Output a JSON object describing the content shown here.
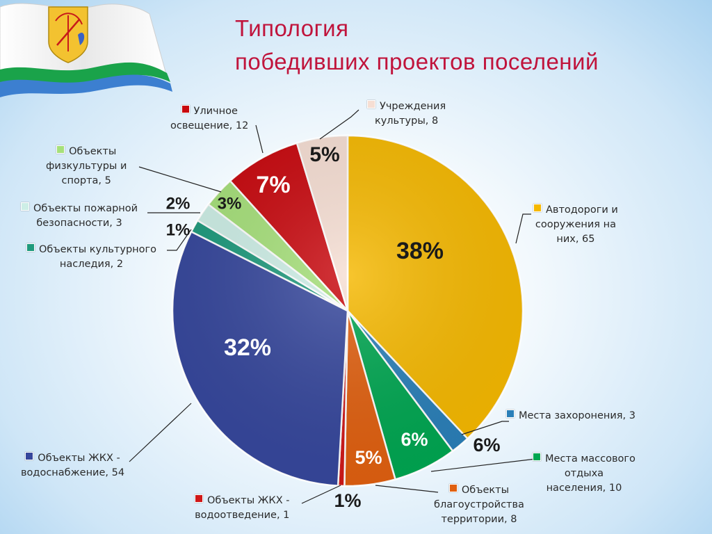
{
  "title": {
    "line1": "Типология",
    "line2": "победивших проектов поселений"
  },
  "chart_data": {
    "type": "pie",
    "title": "Типология победивших проектов поселений",
    "start_angle_deg": 0,
    "direction": "clockwise",
    "slices": [
      {
        "name": "Автодороги и сооружения на них",
        "label": "Автодороги и сооружения на них, 65",
        "value": 65,
        "percent": "38%",
        "color": "#f5b800"
      },
      {
        "name": "Места захоронения",
        "label": "Места захоронения, 3",
        "value": 3,
        "percent": "",
        "color": "#2a7fb8"
      },
      {
        "name": "Места массового отдыха населения",
        "label": "Места массового отдыха населения, 10",
        "value": 10,
        "percent": "6%",
        "color": "#00a651"
      },
      {
        "name": "Объекты благоустройства территории",
        "label": "Объекты благоустройства территории, 8",
        "value": 8,
        "percent": "5%",
        "color": "#e06010"
      },
      {
        "name": "Объекты ЖКХ - водоотведение",
        "label": "Объекты ЖКХ - водоотведение, 1",
        "value": 1,
        "percent": "1%",
        "color": "#d01818"
      },
      {
        "name": "Объекты ЖКХ - водоснабжение",
        "label": "Объекты ЖКХ - водоснабжение, 54",
        "value": 54,
        "percent": "32%",
        "color": "#36479c"
      },
      {
        "name": "Объекты культурного наследия",
        "label": "Объекты культурного наследия, 2",
        "value": 2,
        "percent": "1%",
        "color": "#1f9a7d"
      },
      {
        "name": "Объекты пожарной безопасности",
        "label": "Объекты пожарной безопасности, 3",
        "value": 3,
        "percent": "2%",
        "color": "#cdeee6"
      },
      {
        "name": "Объекты физкультуры и спорта",
        "label": "Объекты физкультуры и спорта, 5",
        "value": 5,
        "percent": "3%",
        "color": "#a6e07a"
      },
      {
        "name": "Уличное освещение",
        "label": "Уличное освещение, 12",
        "value": 12,
        "percent": "7%",
        "color": "#c8080e"
      },
      {
        "name": "Учреждения культуры",
        "label": "Учреждения культуры, 8",
        "value": 8,
        "percent": "5%",
        "color": "#f6ded3"
      }
    ],
    "extra_percent_labels": [
      "6%"
    ]
  },
  "labels": {
    "roads": {
      "l1": "Автодороги и",
      "l2": "сооружения на",
      "l3": "них, 65"
    },
    "burial": {
      "l1": "Места захоронения, 3"
    },
    "recreation": {
      "l1": "Места массового",
      "l2": "отдыха",
      "l3": "населения, 10"
    },
    "improvement": {
      "l1": "Объекты",
      "l2": "благоустройства",
      "l3": "территории, 8"
    },
    "sewerage": {
      "l1": "Объекты ЖКХ -",
      "l2": "водоотведение, 1"
    },
    "water": {
      "l1": "Объекты ЖКХ -",
      "l2": "водоснабжение, 54"
    },
    "heritage": {
      "l1": "Объекты культурного",
      "l2": "наследия, 2"
    },
    "fire": {
      "l1": "Объекты пожарной",
      "l2": "безопасности, 3"
    },
    "sport": {
      "l1": "Объекты",
      "l2": "физкультуры и",
      "l3": "спорта, 5"
    },
    "lighting": {
      "l1": "Уличное",
      "l2": "освещение, 12"
    },
    "culture": {
      "l1": "Учреждения",
      "l2": "культуры, 8"
    }
  }
}
